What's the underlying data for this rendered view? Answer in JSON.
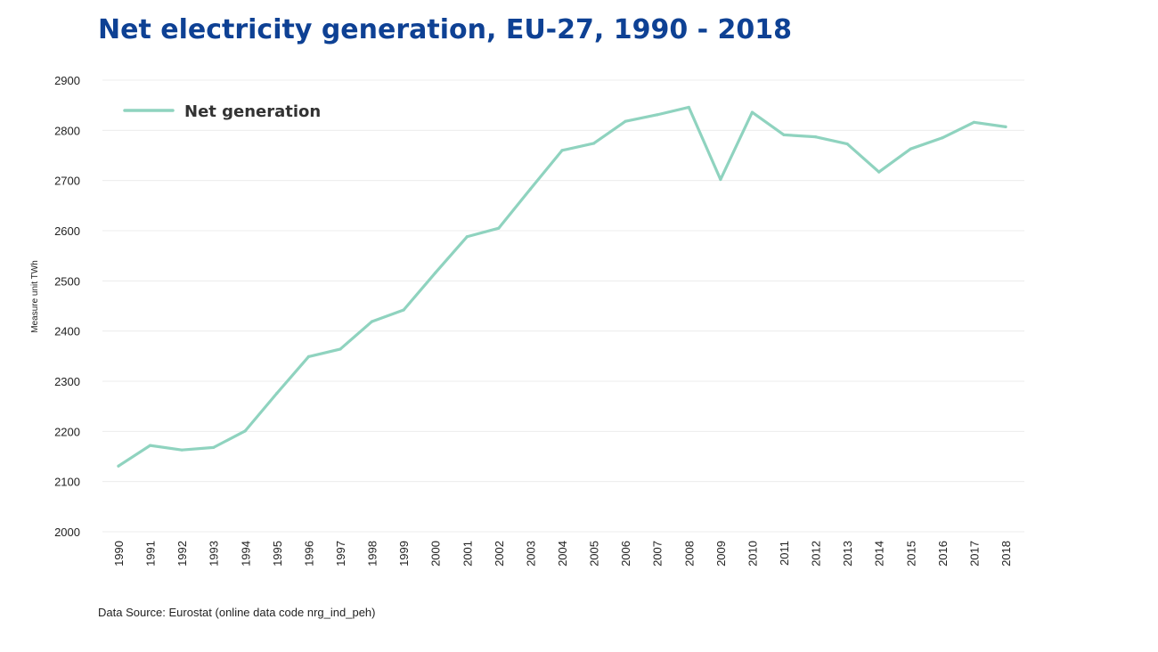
{
  "title": "Net electricity generation, EU-27, 1990 - 2018",
  "source": "Data Source: Eurostat (online data code nrg_ind_peh)",
  "colors": {
    "title": "#0e4194",
    "series": "#8fd3bf",
    "grid": "#ececec",
    "text": "#222222"
  },
  "chart_data": {
    "type": "line",
    "title": "Net electricity generation, EU-27, 1990 - 2018",
    "xlabel": "",
    "ylabel": "Measure unit TWh",
    "ylim": [
      2000,
      2900
    ],
    "yticks": [
      2000,
      2100,
      2200,
      2300,
      2400,
      2500,
      2600,
      2700,
      2800,
      2900
    ],
    "grid": true,
    "legend_position": "top-left",
    "x": [
      "1990",
      "1991",
      "1992",
      "1993",
      "1994",
      "1995",
      "1996",
      "1997",
      "1998",
      "1999",
      "2000",
      "2001",
      "2002",
      "2003",
      "2004",
      "2005",
      "2006",
      "2007",
      "2008",
      "2009",
      "2010",
      "2011",
      "2012",
      "2013",
      "2014",
      "2015",
      "2016",
      "2017",
      "2018"
    ],
    "series": [
      {
        "name": "Net generation",
        "values": [
          2131,
          2172,
          2163,
          2168,
          2201,
          2276,
          2349,
          2364,
          2419,
          2442,
          2516,
          2588,
          2605,
          2683,
          2760,
          2774,
          2818,
          2831,
          2846,
          2702,
          2836,
          2791,
          2787,
          2773,
          2717,
          2763,
          2785,
          2816,
          2807
        ]
      }
    ]
  }
}
